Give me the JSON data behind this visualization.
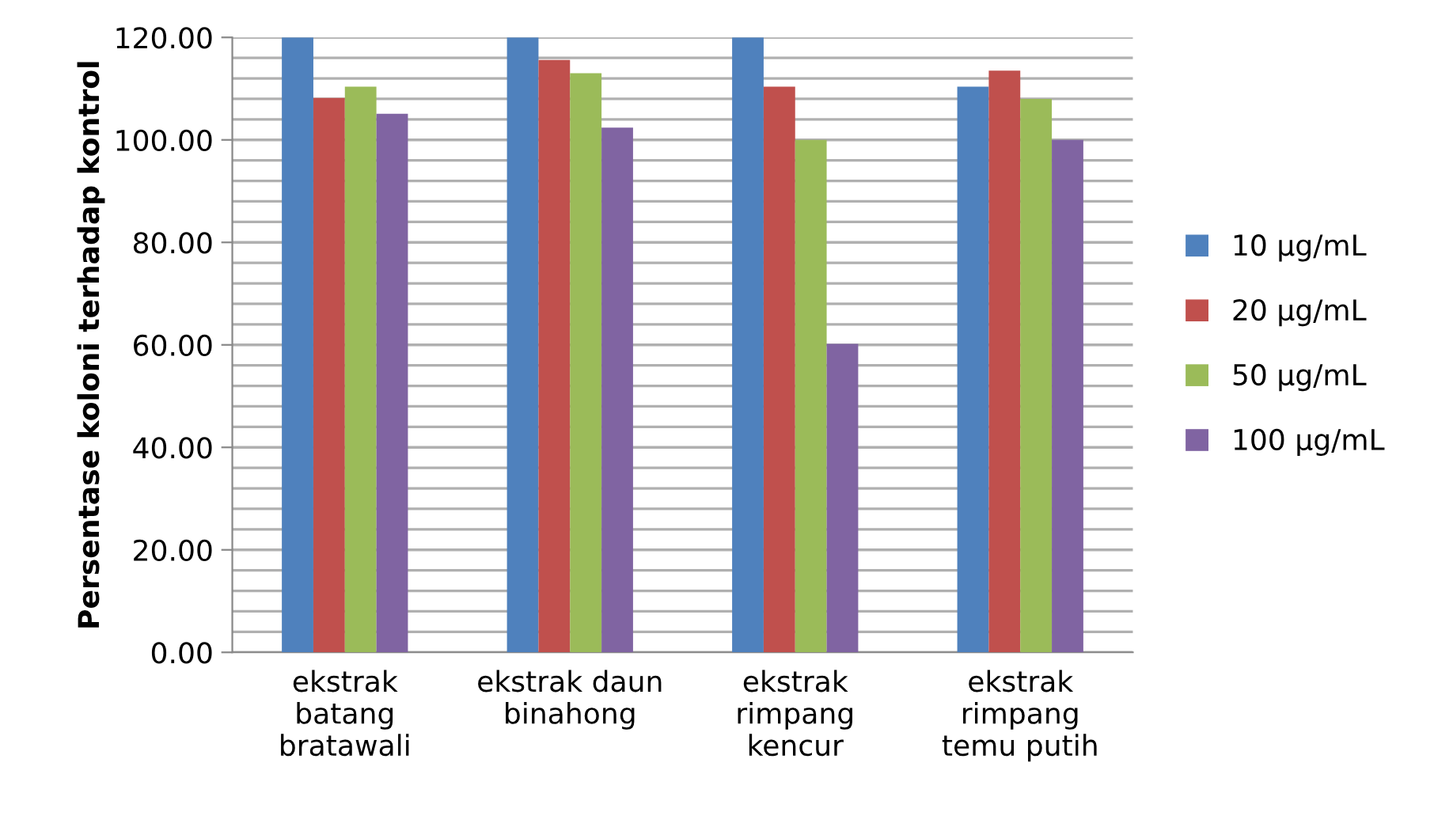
{
  "chart_data": {
    "type": "bar",
    "ylabel": "Persentase koloni terhadap kontrol",
    "categories": [
      "ekstrak\nbatang\nbratawali",
      "ekstrak daun\nbinahong",
      "ekstrak\nrimpang\nkencur",
      "ekstrak\nrimpang\ntemu putih"
    ],
    "series": [
      {
        "name": "10 µg/mL",
        "color": "#4f81bd",
        "values": [
          120,
          120,
          120,
          110.4
        ]
      },
      {
        "name": "20 µg/mL",
        "color": "#c0504d",
        "values": [
          108.2,
          115.6,
          110.4,
          113.5
        ]
      },
      {
        "name": "50 µg/mL",
        "color": "#9bbb59",
        "values": [
          110.4,
          113.0,
          100.0,
          108.0
        ]
      },
      {
        "name": "100 µg/mL",
        "color": "#8064a2",
        "values": [
          105.1,
          102.4,
          60.2,
          100.0
        ]
      }
    ],
    "ylim": [
      0,
      120
    ],
    "yticks": [
      {
        "value": 0,
        "label": "0.00"
      },
      {
        "value": 4,
        "label": null
      },
      {
        "value": 8,
        "label": null
      },
      {
        "value": 12,
        "label": null
      },
      {
        "value": 16,
        "label": null
      },
      {
        "value": 20,
        "label": "20.00"
      },
      {
        "value": 24,
        "label": null
      },
      {
        "value": 28,
        "label": null
      },
      {
        "value": 32,
        "label": null
      },
      {
        "value": 36,
        "label": null
      },
      {
        "value": 40,
        "label": "40.00"
      },
      {
        "value": 44,
        "label": null
      },
      {
        "value": 48,
        "label": null
      },
      {
        "value": 52,
        "label": null
      },
      {
        "value": 56,
        "label": null
      },
      {
        "value": 60,
        "label": "60.00"
      },
      {
        "value": 64,
        "label": null
      },
      {
        "value": 68,
        "label": null
      },
      {
        "value": 72,
        "label": null
      },
      {
        "value": 76,
        "label": null
      },
      {
        "value": 80,
        "label": "80.00"
      },
      {
        "value": 84,
        "label": null
      },
      {
        "value": 88,
        "label": null
      },
      {
        "value": 92,
        "label": null
      },
      {
        "value": 96,
        "label": null
      },
      {
        "value": 100,
        "label": "100.00"
      },
      {
        "value": 104,
        "label": null
      },
      {
        "value": 108,
        "label": null
      },
      {
        "value": 112,
        "label": null
      },
      {
        "value": 116,
        "label": null
      },
      {
        "value": 120,
        "label": "120.00"
      }
    ],
    "grid": "y",
    "legend": "right"
  }
}
